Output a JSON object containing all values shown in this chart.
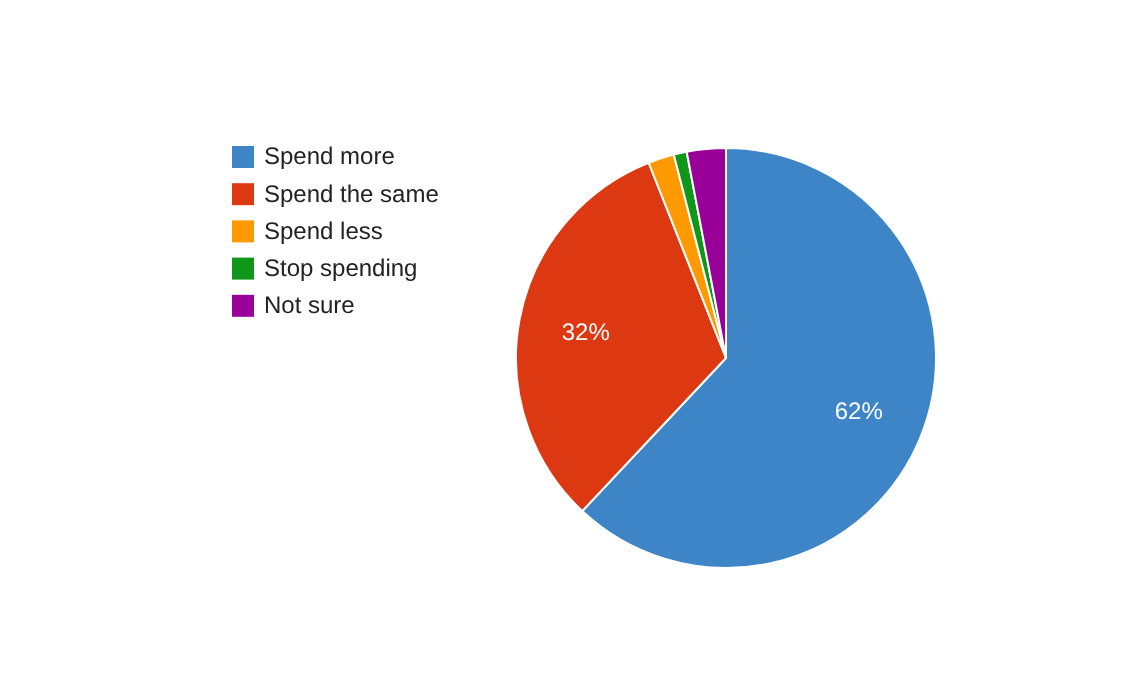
{
  "chart_data": {
    "type": "pie",
    "categories": [
      "Spend more",
      "Spend the same",
      "Spend less",
      "Stop spending",
      "Not sure"
    ],
    "values": [
      62,
      32,
      2,
      1,
      3
    ],
    "colors": [
      "#3d85c6",
      "#dc3912",
      "#ff9900",
      "#109618",
      "#990099"
    ],
    "value_labels": [
      "62%",
      "32%",
      null,
      null,
      null
    ],
    "legend": "left"
  }
}
